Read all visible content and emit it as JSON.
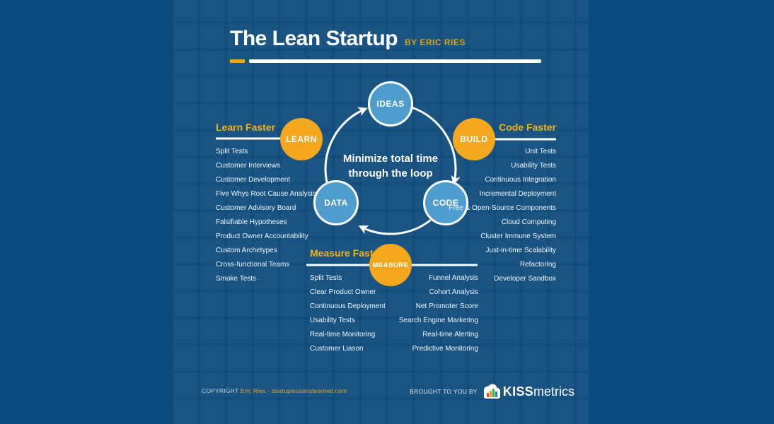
{
  "title": {
    "main": "The Lean Startup",
    "byline": "BY ERIC RIES"
  },
  "loop": {
    "nodes": {
      "ideas": "IDEAS",
      "build": "BUILD",
      "code": "CODE",
      "measure": "MEASURE",
      "data": "DATA",
      "learn": "LEARN"
    },
    "center_text": {
      "line1": "Minimize total time",
      "line2": "through the loop"
    }
  },
  "sections": {
    "learn": {
      "heading": "Learn Faster",
      "items": [
        "Split Tests",
        "Customer Interviews",
        "Customer Development",
        "Five Whys Root Cause Analysis",
        "Customer Advisory Board",
        "Falsifiable Hypotheses",
        "Product Owner Accountability",
        "Custom Archetypes",
        "Cross-functional Teams",
        "Smoke Tests"
      ]
    },
    "code": {
      "heading": "Code Faster",
      "items": [
        "Unit Tests",
        "Usability Tests",
        "Continuous Integration",
        "Incremental Deployment",
        "Free & Open-Source Components",
        "Cloud Computing",
        "Cluster Immune System",
        "Just-in-time Scalability",
        "Refactoring",
        "Developer Sandbox"
      ]
    },
    "measure": {
      "heading": "Measure Faster",
      "items_left": [
        "Split Tests",
        "Clear Product Owner",
        "Continuous Deployment",
        "Usability Tests",
        "Real-time Monitoring",
        "Customer Liason"
      ],
      "items_right": [
        "Funnel Analysis",
        "Cohort Analysis",
        "Net Promoter Score",
        "Search Engine Marketing",
        "Real-time Alerting",
        "Predictive Monitoring"
      ]
    }
  },
  "footer": {
    "copyright_label": "COPYRIGHT",
    "copyright_text": "Eric Ries - startuplessonslearned.com",
    "brought_by": "BROUGHT TO YOU BY",
    "brand_bold": "KISS",
    "brand_rest": "metrics"
  },
  "colors": {
    "background": "#0d4a7c",
    "node_orange": "#f2a71f",
    "heading_gold": "#f7b117",
    "node_blue": "#4f9ccf",
    "text_white": "#ffffff",
    "copyright_gold": "#e0a42c"
  }
}
